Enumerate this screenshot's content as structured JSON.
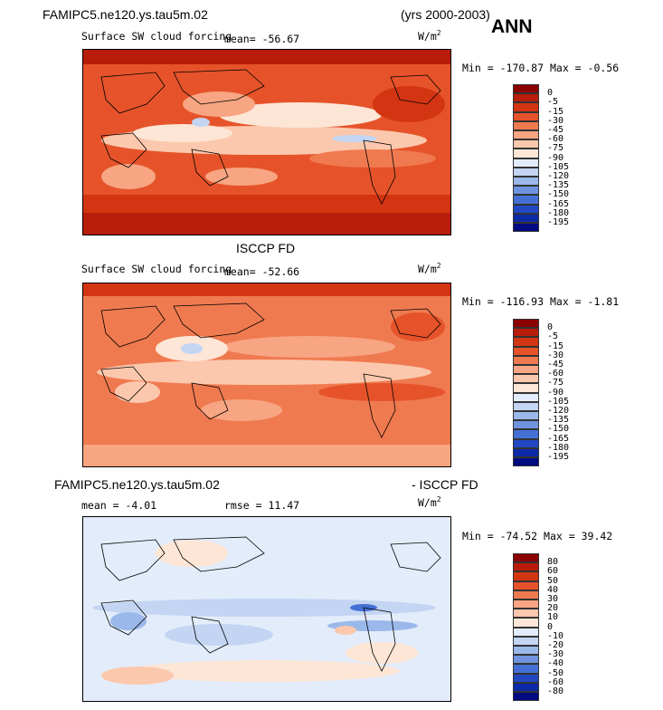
{
  "header": {
    "case_name": "FAMIPC5.ne120.ys.tau5m.02",
    "years": "(yrs 2000-2003)",
    "season": "ANN"
  },
  "unit_label": "W/m",
  "unit_exp": "2",
  "chart_data": [
    {
      "type": "heatmap",
      "title": "Surface SW cloud forcing",
      "mean_label": "mean=",
      "mean_value": "-56.67",
      "min_label": "Min =",
      "min_value": "-170.87",
      "max_label": "Max =",
      "max_value": "-0.56",
      "colorbar_levels": [
        "0",
        "-5",
        "-15",
        "-30",
        "-45",
        "-60",
        "-75",
        "-90",
        "-105",
        "-120",
        "-135",
        "-150",
        "-165",
        "-180",
        "-195"
      ],
      "colors": [
        "#8b0000",
        "#b81c0a",
        "#d33512",
        "#e6532a",
        "#f07a50",
        "#f7a582",
        "#fcc8ad",
        "#fde6d6",
        "#e3ecfa",
        "#c3d5f3",
        "#9bb8ea",
        "#6f93df",
        "#4470d5",
        "#2148c2",
        "#0c2aa5",
        "#020b80"
      ]
    },
    {
      "type": "heatmap",
      "subtitle": "ISCCP FD",
      "title": "Surface SW cloud forcing",
      "mean_label": "mean=",
      "mean_value": "-52.66",
      "min_label": "Min =",
      "min_value": "-116.93",
      "max_label": "Max =",
      "max_value": "-1.81",
      "colorbar_levels": [
        "0",
        "-5",
        "-15",
        "-30",
        "-45",
        "-60",
        "-75",
        "-90",
        "-105",
        "-120",
        "-135",
        "-150",
        "-165",
        "-180",
        "-195"
      ],
      "colors": [
        "#8b0000",
        "#b81c0a",
        "#d33512",
        "#e6532a",
        "#f07a50",
        "#f7a582",
        "#fcc8ad",
        "#fde6d6",
        "#e3ecfa",
        "#c3d5f3",
        "#9bb8ea",
        "#6f93df",
        "#4470d5",
        "#2148c2",
        "#0c2aa5",
        "#020b80"
      ]
    },
    {
      "type": "heatmap",
      "title_left": "FAMIPC5.ne120.ys.tau5m.02",
      "title_right": "- ISCCP FD",
      "mean_label": "mean =",
      "mean_value": "-4.01",
      "rmse_label": "rmse =",
      "rmse_value": "11.47",
      "min_label": "Min =",
      "min_value": "-74.52",
      "max_label": "Max =",
      "max_value": "39.42",
      "colorbar_levels": [
        "80",
        "60",
        "50",
        "40",
        "30",
        "20",
        "10",
        "0",
        "-10",
        "-20",
        "-30",
        "-40",
        "-50",
        "-60",
        "-80"
      ],
      "colors": [
        "#8b0000",
        "#b81c0a",
        "#d33512",
        "#e6532a",
        "#f07a50",
        "#f7a582",
        "#fcc8ad",
        "#fde6d6",
        "#e3ecfa",
        "#c3d5f3",
        "#9bb8ea",
        "#6f93df",
        "#4470d5",
        "#2148c2",
        "#0c2aa5",
        "#020b80"
      ]
    }
  ]
}
